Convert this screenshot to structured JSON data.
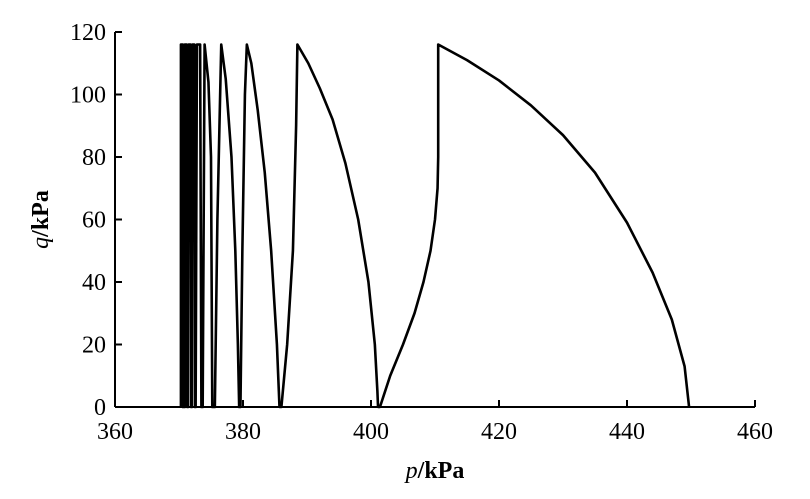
{
  "chart_data": {
    "type": "line",
    "title": "",
    "xlabel": {
      "italic": "p",
      "bold": "/kPa"
    },
    "ylabel": {
      "italic": "q",
      "bold": "/kPa"
    },
    "xlim": [
      360,
      460
    ],
    "ylim": [
      0,
      120
    ],
    "x_ticks": [
      360,
      380,
      400,
      420,
      440,
      460
    ],
    "y_ticks": [
      0,
      20,
      40,
      60,
      80,
      100,
      120
    ],
    "grid": false,
    "legend": "none",
    "line_color": "#000000",
    "series": [
      {
        "values": [
          [
            370.3,
            0
          ],
          [
            370.3,
            116
          ],
          [
            370.6,
            116
          ],
          [
            370.6,
            0
          ],
          [
            370.9,
            0
          ],
          [
            370.9,
            116
          ],
          [
            371.2,
            116
          ],
          [
            371.3,
            0
          ],
          [
            371.4,
            0
          ],
          [
            371.5,
            116
          ],
          [
            371.8,
            116
          ],
          [
            371.9,
            0
          ],
          [
            372.0,
            0
          ],
          [
            372.1,
            116
          ],
          [
            372.4,
            116
          ],
          [
            372.5,
            0
          ],
          [
            372.6,
            0
          ],
          [
            372.8,
            116
          ],
          [
            373.3,
            116
          ],
          [
            373.5,
            0
          ],
          [
            373.7,
            0
          ],
          [
            374.0,
            116
          ],
          [
            374.6,
            104
          ],
          [
            375.0,
            80
          ],
          [
            375.2,
            0
          ],
          [
            375.6,
            0
          ],
          [
            376.0,
            60
          ],
          [
            376.6,
            116
          ],
          [
            377.3,
            105
          ],
          [
            378.2,
            80
          ],
          [
            378.8,
            50
          ],
          [
            379.2,
            20
          ],
          [
            379.4,
            0
          ],
          [
            379.6,
            0
          ],
          [
            379.9,
            50
          ],
          [
            380.3,
            100
          ],
          [
            380.6,
            116
          ],
          [
            381.3,
            110
          ],
          [
            382.3,
            95
          ],
          [
            383.4,
            75
          ],
          [
            384.4,
            50
          ],
          [
            385.3,
            20
          ],
          [
            385.6,
            5
          ],
          [
            385.7,
            0
          ],
          [
            386.0,
            0
          ],
          [
            386.9,
            20
          ],
          [
            387.8,
            50
          ],
          [
            388.3,
            90
          ],
          [
            388.5,
            116
          ],
          [
            390.2,
            110
          ],
          [
            392.0,
            102
          ],
          [
            394.0,
            92
          ],
          [
            396.0,
            78
          ],
          [
            398.0,
            60
          ],
          [
            399.6,
            40
          ],
          [
            400.6,
            20
          ],
          [
            401.0,
            5
          ],
          [
            401.1,
            0
          ],
          [
            401.4,
            0
          ],
          [
            403.0,
            10
          ],
          [
            405.0,
            20
          ],
          [
            406.8,
            30
          ],
          [
            408.2,
            40
          ],
          [
            409.3,
            50
          ],
          [
            410.0,
            60
          ],
          [
            410.4,
            70
          ],
          [
            410.5,
            80
          ],
          [
            410.5,
            116
          ],
          [
            415.0,
            111
          ],
          [
            420.0,
            104.5
          ],
          [
            425.0,
            96.5
          ],
          [
            430.0,
            87
          ],
          [
            435.0,
            75
          ],
          [
            440.0,
            59
          ],
          [
            444.0,
            43
          ],
          [
            447.0,
            28
          ],
          [
            449.0,
            13
          ],
          [
            449.7,
            0
          ]
        ]
      }
    ]
  }
}
